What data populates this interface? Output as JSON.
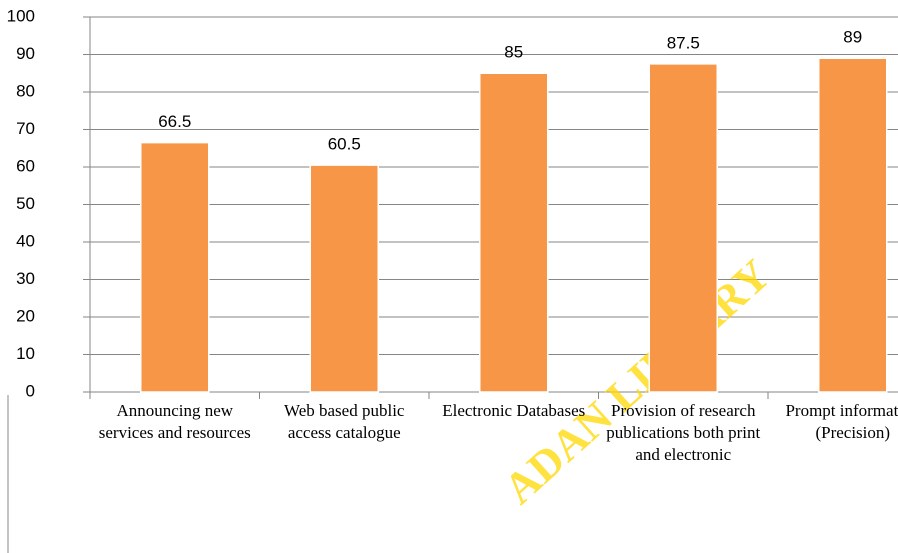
{
  "chart_data": {
    "type": "bar",
    "categories": [
      "Announcing new services and resources",
      "Web based public access catalogue",
      "Electronic Databases",
      "Provision of research publications both print and electronic",
      "Prompt information (Precision)"
    ],
    "values": [
      66.5,
      60.5,
      85,
      87.5,
      89
    ],
    "color": "#f79646",
    "ylim": [
      0,
      100
    ],
    "yticks": [
      0,
      10,
      20,
      30,
      40,
      50,
      60,
      70,
      80,
      90,
      100
    ],
    "grid": true,
    "watermark": "ADAN LIBRARY"
  }
}
